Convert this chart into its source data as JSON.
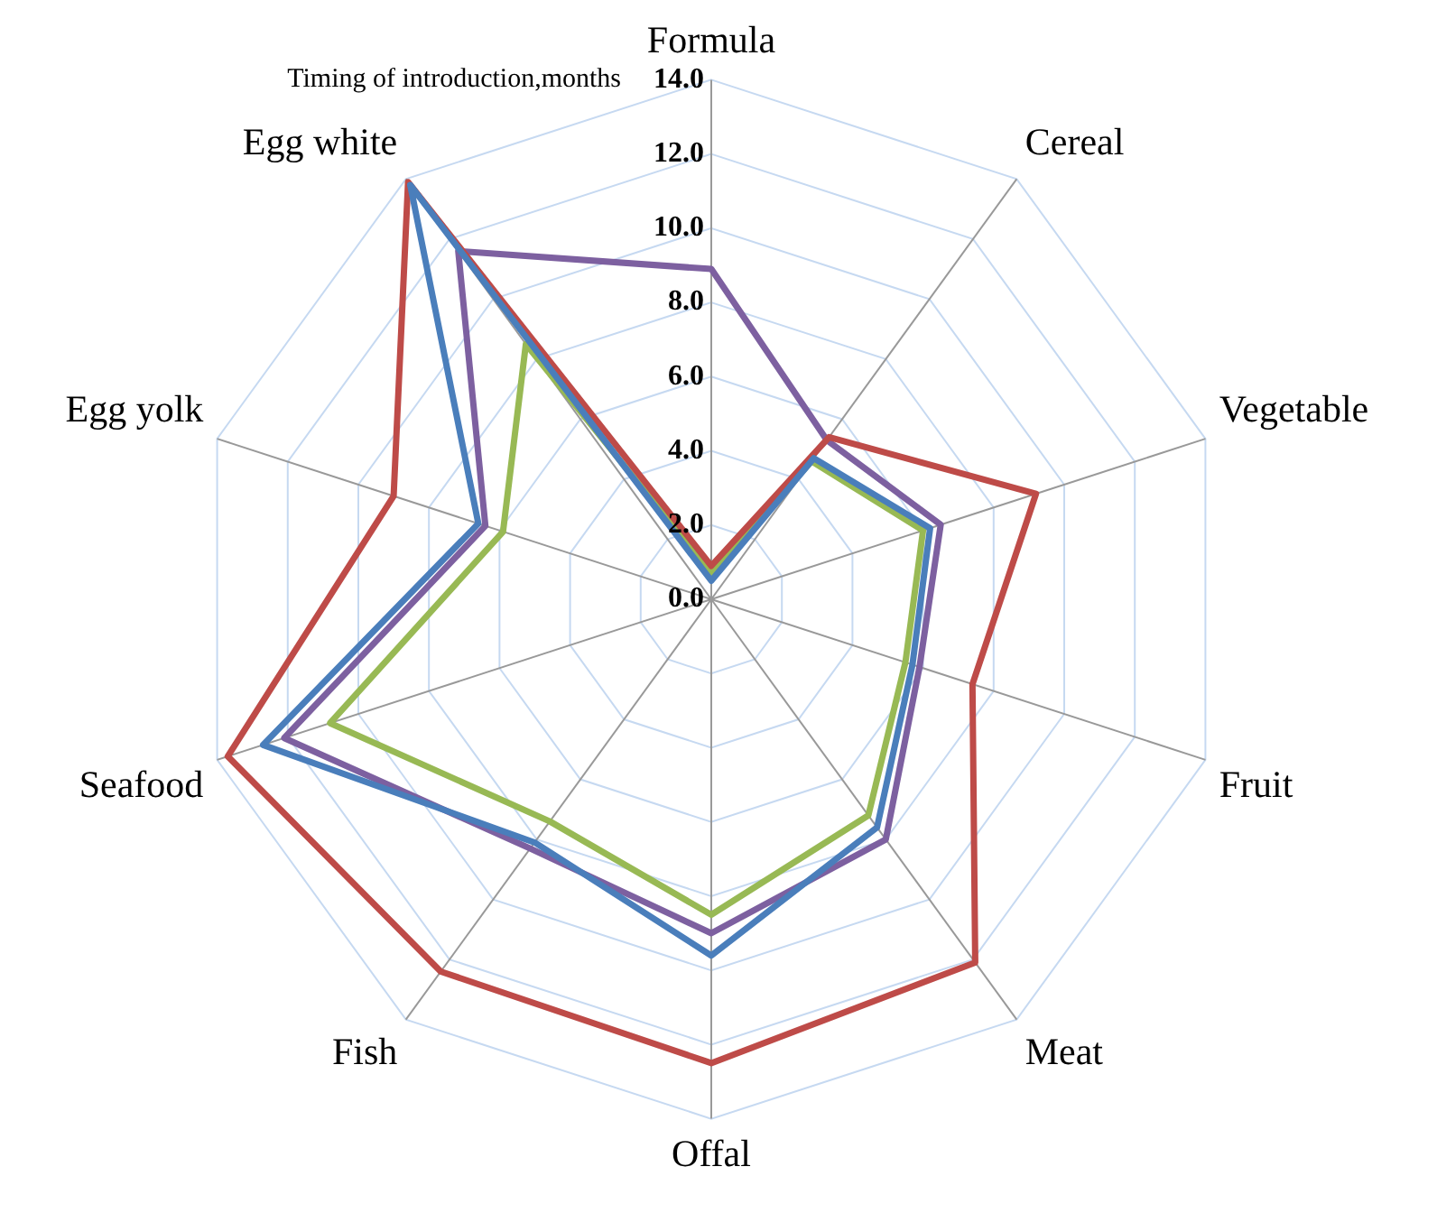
{
  "chart_data": {
    "type": "radar",
    "ylabel": "Timing of introduction,months",
    "categories": [
      "Formula",
      "Cereal",
      "Vegetable",
      "Fruit",
      "Meat",
      "Offal",
      "Fish",
      "Seafood",
      "Egg yolk",
      "Egg white"
    ],
    "series": [
      {
        "color": "#4a7ebb",
        "values": [
          0.5,
          4.7,
          6.2,
          5.7,
          7.6,
          9.6,
          8.1,
          12.7,
          6.6,
          13.8
        ]
      },
      {
        "color": "#be4b48",
        "values": [
          0.9,
          5.4,
          9.2,
          7.4,
          12.1,
          12.5,
          12.4,
          13.7,
          9.0,
          13.9
        ]
      },
      {
        "color": "#98b954",
        "values": [
          0.7,
          4.6,
          6.0,
          5.5,
          7.2,
          8.5,
          7.4,
          10.8,
          5.9,
          8.5
        ]
      },
      {
        "color": "#7d60a0",
        "values": [
          8.9,
          5.3,
          6.5,
          5.9,
          8.0,
          9.0,
          8.3,
          12.1,
          6.4,
          11.6
        ]
      }
    ],
    "ylim": [
      0,
      14
    ],
    "yticks": [
      {
        "value": 0,
        "label": "0.0"
      },
      {
        "value": 2,
        "label": "2.0"
      },
      {
        "value": 4,
        "label": "4.0"
      },
      {
        "value": 6,
        "label": "6.0"
      },
      {
        "value": 8,
        "label": "8.0"
      },
      {
        "value": 10,
        "label": "10.0"
      },
      {
        "value": 12,
        "label": "12.0"
      },
      {
        "value": 14,
        "label": "14.0"
      }
    ],
    "grid": true,
    "legend": false,
    "marker": "none",
    "line_style": "solid"
  }
}
